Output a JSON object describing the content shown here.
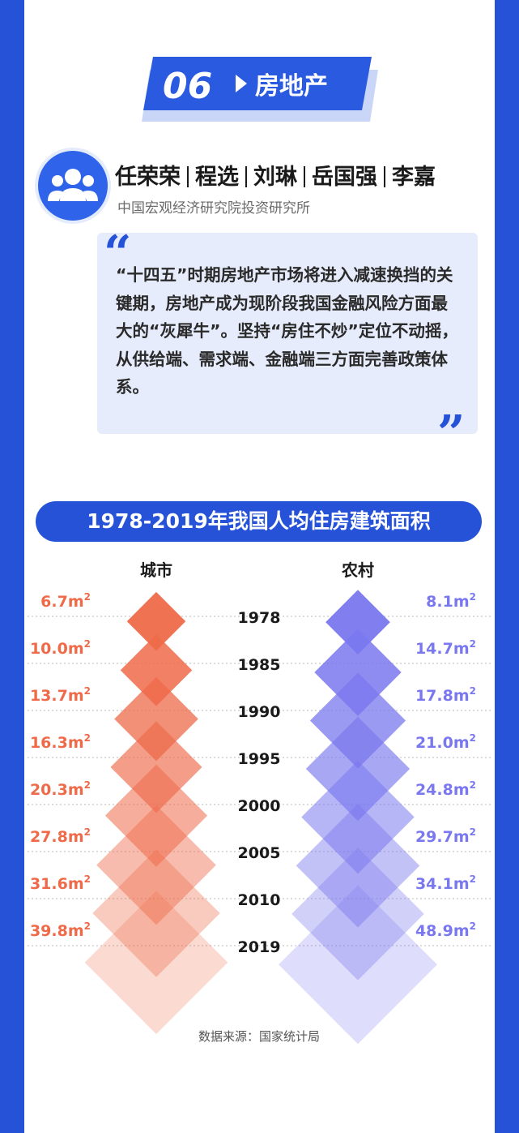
{
  "section": {
    "number": "06",
    "title": "房地产"
  },
  "authors": [
    "任荣荣",
    "程选",
    "刘琳",
    "岳国强",
    "李嘉"
  ],
  "institute": "中国宏观经济研究院投资研究所",
  "quote": "“十四五”时期房地产市场将进入减速换挡的关键期，房地产成为现阶段我国金融风险方面最大的“灰犀牛”。坚持“房住不炒”定位不动摇，从供给端、需求端、金融端三方面完善政策体系。",
  "source": "数据来源：国家统计局",
  "colors": {
    "frame": "#2652d8",
    "urban": "#ee6a49",
    "rural": "#7a78ee",
    "quote_bg": "#e6ecfb"
  },
  "chart_data": {
    "type": "table",
    "title": "1978-2019年我国人均住房建筑面积",
    "unit": "m²",
    "series": [
      {
        "name": "城市",
        "values": [
          6.7,
          10.0,
          13.7,
          16.3,
          20.3,
          27.8,
          31.6,
          39.8
        ],
        "labels": [
          "6.7",
          "10.0",
          "13.7",
          "16.3",
          "20.3",
          "27.8",
          "31.6",
          "39.8"
        ]
      },
      {
        "name": "农村",
        "values": [
          8.1,
          14.7,
          17.8,
          21.0,
          24.8,
          29.7,
          34.1,
          48.9
        ],
        "labels": [
          "8.1",
          "14.7",
          "17.8",
          "21.0",
          "24.8",
          "29.7",
          "34.1",
          "48.9"
        ]
      }
    ],
    "categories": [
      "1978",
      "1985",
      "1990",
      "1995",
      "2000",
      "2005",
      "2010",
      "2019"
    ]
  }
}
